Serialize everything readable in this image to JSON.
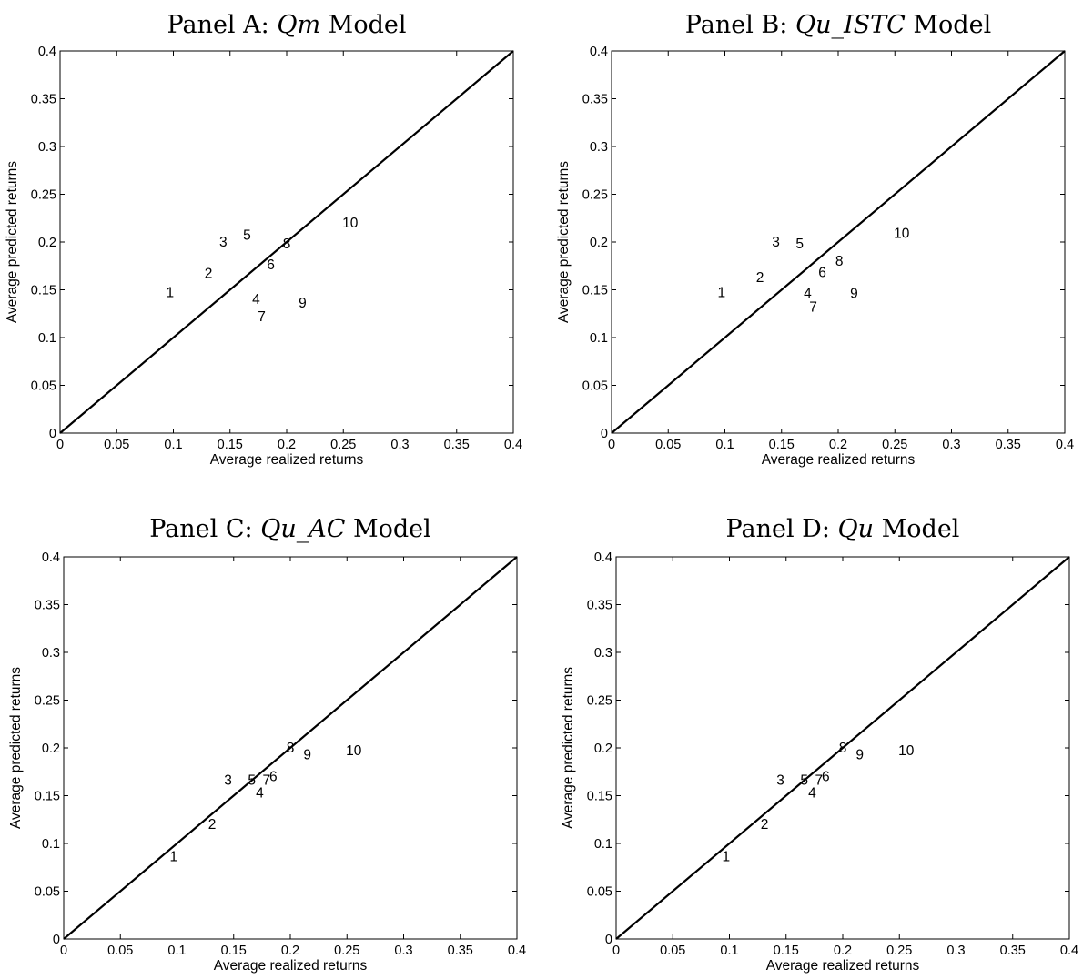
{
  "chart_data": [
    {
      "type": "scatter",
      "title": {
        "prefix": "Panel A: ",
        "model": "Qm",
        "suffix": " Model"
      },
      "xlabel": "Average realized returns",
      "ylabel": "Average predicted returns",
      "xlim": [
        0,
        0.4
      ],
      "ylim": [
        0,
        0.4
      ],
      "xticks": [
        "0",
        "0.05",
        "0.1",
        "0.15",
        "0.2",
        "0.25",
        "0.3",
        "0.35",
        "0.4"
      ],
      "yticks": [
        "0",
        "0.05",
        "0.1",
        "0.15",
        "0.2",
        "0.25",
        "0.3",
        "0.35",
        "0.4"
      ],
      "reference_line": "45-degree line",
      "points": [
        {
          "label": "1",
          "x": 0.097,
          "y": 0.147
        },
        {
          "label": "2",
          "x": 0.131,
          "y": 0.167
        },
        {
          "label": "3",
          "x": 0.144,
          "y": 0.2
        },
        {
          "label": "4",
          "x": 0.173,
          "y": 0.14
        },
        {
          "label": "5",
          "x": 0.165,
          "y": 0.207
        },
        {
          "label": "6",
          "x": 0.186,
          "y": 0.176
        },
        {
          "label": "7",
          "x": 0.178,
          "y": 0.122
        },
        {
          "label": "8",
          "x": 0.2,
          "y": 0.198
        },
        {
          "label": "9",
          "x": 0.214,
          "y": 0.136
        },
        {
          "label": "10",
          "x": 0.256,
          "y": 0.22
        }
      ]
    },
    {
      "type": "scatter",
      "title": {
        "prefix": "Panel B: ",
        "model": "Qu_ISTC",
        "suffix": " Model"
      },
      "xlabel": "Average realized returns",
      "ylabel": "Average predicted returns",
      "xlim": [
        0,
        0.4
      ],
      "ylim": [
        0,
        0.4
      ],
      "xticks": [
        "0",
        "0.05",
        "0.1",
        "0.15",
        "0.2",
        "0.25",
        "0.3",
        "0.35",
        "0.4"
      ],
      "yticks": [
        "0",
        "0.05",
        "0.1",
        "0.15",
        "0.2",
        "0.25",
        "0.3",
        "0.35",
        "0.4"
      ],
      "reference_line": "45-degree line",
      "points": [
        {
          "label": "1",
          "x": 0.097,
          "y": 0.147
        },
        {
          "label": "2",
          "x": 0.131,
          "y": 0.163
        },
        {
          "label": "3",
          "x": 0.145,
          "y": 0.2
        },
        {
          "label": "4",
          "x": 0.173,
          "y": 0.146
        },
        {
          "label": "5",
          "x": 0.166,
          "y": 0.198
        },
        {
          "label": "6",
          "x": 0.186,
          "y": 0.168
        },
        {
          "label": "7",
          "x": 0.178,
          "y": 0.132
        },
        {
          "label": "8",
          "x": 0.201,
          "y": 0.18
        },
        {
          "label": "9",
          "x": 0.214,
          "y": 0.146
        },
        {
          "label": "10",
          "x": 0.256,
          "y": 0.209
        }
      ]
    },
    {
      "type": "scatter",
      "title": {
        "prefix": "Panel C: ",
        "model": "Qu_AC",
        "suffix": " Model"
      },
      "xlabel": "Average realized returns",
      "ylabel": "Average predicted returns",
      "xlim": [
        0,
        0.4
      ],
      "ylim": [
        0,
        0.4
      ],
      "xticks": [
        "0",
        "0.05",
        "0.1",
        "0.15",
        "0.2",
        "0.25",
        "0.3",
        "0.35",
        "0.4"
      ],
      "yticks": [
        "0",
        "0.05",
        "0.1",
        "0.15",
        "0.2",
        "0.25",
        "0.3",
        "0.35",
        "0.4"
      ],
      "reference_line": "45-degree line",
      "points": [
        {
          "label": "1",
          "x": 0.097,
          "y": 0.086
        },
        {
          "label": "2",
          "x": 0.131,
          "y": 0.12
        },
        {
          "label": "3",
          "x": 0.145,
          "y": 0.166
        },
        {
          "label": "4",
          "x": 0.173,
          "y": 0.153
        },
        {
          "label": "5",
          "x": 0.166,
          "y": 0.166
        },
        {
          "label": "6",
          "x": 0.185,
          "y": 0.17
        },
        {
          "label": "7",
          "x": 0.179,
          "y": 0.166
        },
        {
          "label": "8",
          "x": 0.2,
          "y": 0.2
        },
        {
          "label": "9",
          "x": 0.215,
          "y": 0.193
        },
        {
          "label": "10",
          "x": 0.256,
          "y": 0.197
        }
      ]
    },
    {
      "type": "scatter",
      "title": {
        "prefix": "Panel D: ",
        "model": "Qu",
        "suffix": " Model"
      },
      "xlabel": "Average realized returns",
      "ylabel": "Average predicted returns",
      "xlim": [
        0,
        0.4
      ],
      "ylim": [
        0,
        0.4
      ],
      "xticks": [
        "0",
        "0.05",
        "0.1",
        "0.15",
        "0.2",
        "0.25",
        "0.3",
        "0.35",
        "0.4"
      ],
      "yticks": [
        "0",
        "0.05",
        "0.1",
        "0.15",
        "0.2",
        "0.25",
        "0.3",
        "0.35",
        "0.4"
      ],
      "reference_line": "45-degree line",
      "points": [
        {
          "label": "1",
          "x": 0.097,
          "y": 0.086
        },
        {
          "label": "2",
          "x": 0.131,
          "y": 0.12
        },
        {
          "label": "3",
          "x": 0.145,
          "y": 0.166
        },
        {
          "label": "4",
          "x": 0.173,
          "y": 0.153
        },
        {
          "label": "5",
          "x": 0.166,
          "y": 0.166
        },
        {
          "label": "6",
          "x": 0.185,
          "y": 0.17
        },
        {
          "label": "7",
          "x": 0.179,
          "y": 0.166
        },
        {
          "label": "8",
          "x": 0.2,
          "y": 0.2
        },
        {
          "label": "9",
          "x": 0.215,
          "y": 0.193
        },
        {
          "label": "10",
          "x": 0.256,
          "y": 0.197
        }
      ]
    }
  ]
}
